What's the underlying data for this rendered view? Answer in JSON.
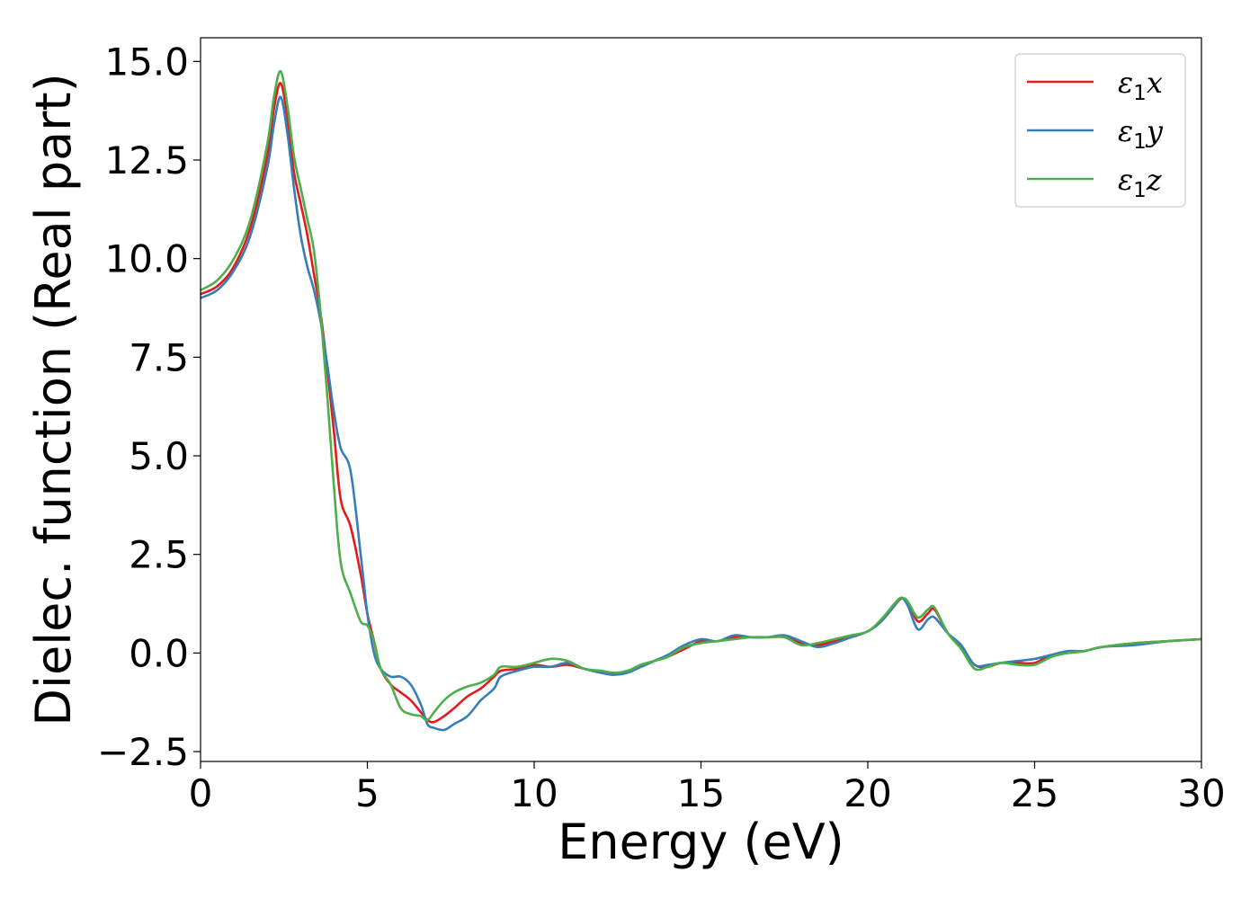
{
  "chart_data": {
    "type": "line",
    "title": "",
    "xlabel": "Energy (eV)",
    "ylabel": "Dielec. function (Real part)",
    "xlim": [
      0,
      30
    ],
    "ylim": [
      -2.75,
      15.6
    ],
    "xticks": [
      0,
      5,
      10,
      15,
      20,
      25,
      30
    ],
    "xtick_labels": [
      "0",
      "5",
      "10",
      "15",
      "20",
      "25",
      "30"
    ],
    "yticks": [
      -2.5,
      0.0,
      2.5,
      5.0,
      7.5,
      10.0,
      12.5,
      15.0
    ],
    "ytick_labels": [
      "−2.5",
      "0.0",
      "2.5",
      "5.0",
      "7.5",
      "10.0",
      "12.5",
      "15.0"
    ],
    "grid": false,
    "legend_position": "top-right",
    "series": [
      {
        "name": "ε₁x",
        "legend_main": "ε",
        "legend_sub": "1",
        "legend_suffix": "x",
        "color": "#e41a1c",
        "x": [
          0,
          0.5,
          1.0,
          1.5,
          2.0,
          2.2,
          2.4,
          2.6,
          2.8,
          3.0,
          3.2,
          3.4,
          3.6,
          3.8,
          4.0,
          4.2,
          4.5,
          4.8,
          5.0,
          5.2,
          5.4,
          5.7,
          6.0,
          6.3,
          6.6,
          6.8,
          7.0,
          7.3,
          7.6,
          8.0,
          8.4,
          8.8,
          9.0,
          9.5,
          10.0,
          10.5,
          11.0,
          11.5,
          12.0,
          12.4,
          12.8,
          13.2,
          13.6,
          14.0,
          14.5,
          15.0,
          15.5,
          16.0,
          16.5,
          17.0,
          17.5,
          18.0,
          18.5,
          19.0,
          19.5,
          20.0,
          20.4,
          20.8,
          21.0,
          21.2,
          21.5,
          21.8,
          22.0,
          22.4,
          22.8,
          23.2,
          23.6,
          24.0,
          24.5,
          25.0,
          25.5,
          26.0,
          26.5,
          27.0,
          28.0,
          29.0,
          30.0
        ],
        "y": [
          9.1,
          9.3,
          9.8,
          10.8,
          12.6,
          13.8,
          14.45,
          13.6,
          12.2,
          11.4,
          10.6,
          9.6,
          8.6,
          7.2,
          5.6,
          3.9,
          3.2,
          2.0,
          1.0,
          0.3,
          -0.4,
          -0.8,
          -1.0,
          -1.2,
          -1.5,
          -1.7,
          -1.75,
          -1.6,
          -1.4,
          -1.1,
          -0.9,
          -0.6,
          -0.45,
          -0.4,
          -0.3,
          -0.35,
          -0.3,
          -0.4,
          -0.5,
          -0.55,
          -0.45,
          -0.35,
          -0.2,
          -0.1,
          0.1,
          0.3,
          0.3,
          0.4,
          0.4,
          0.4,
          0.4,
          0.25,
          0.2,
          0.3,
          0.4,
          0.55,
          0.8,
          1.2,
          1.38,
          1.3,
          0.8,
          1.0,
          1.1,
          0.5,
          0.15,
          -0.3,
          -0.35,
          -0.25,
          -0.25,
          -0.25,
          -0.05,
          0.0,
          0.05,
          0.15,
          0.25,
          0.3,
          0.35
        ]
      },
      {
        "name": "ε₁y",
        "legend_main": "ε",
        "legend_sub": "1",
        "legend_suffix": "y",
        "color": "#377eb8",
        "x": [
          0,
          0.5,
          1.0,
          1.5,
          2.0,
          2.2,
          2.4,
          2.6,
          2.8,
          3.0,
          3.2,
          3.4,
          3.6,
          3.8,
          4.0,
          4.2,
          4.5,
          4.8,
          5.0,
          5.2,
          5.4,
          5.7,
          6.0,
          6.3,
          6.6,
          6.8,
          7.0,
          7.3,
          7.6,
          8.0,
          8.4,
          8.8,
          9.0,
          9.5,
          10.0,
          10.5,
          11.0,
          11.5,
          12.0,
          12.4,
          12.8,
          13.2,
          13.6,
          14.0,
          14.5,
          15.0,
          15.5,
          16.0,
          16.5,
          17.0,
          17.5,
          18.0,
          18.5,
          19.0,
          19.5,
          20.0,
          20.4,
          20.8,
          21.0,
          21.2,
          21.5,
          21.8,
          22.0,
          22.4,
          22.8,
          23.2,
          23.6,
          24.0,
          24.5,
          25.0,
          25.5,
          26.0,
          26.5,
          27.0,
          28.0,
          29.0,
          30.0
        ],
        "y": [
          9.0,
          9.2,
          9.7,
          10.6,
          12.3,
          13.4,
          14.1,
          13.2,
          11.8,
          10.6,
          9.8,
          9.2,
          8.4,
          7.3,
          6.1,
          5.2,
          4.6,
          2.5,
          1.0,
          0.0,
          -0.4,
          -0.6,
          -0.6,
          -0.8,
          -1.3,
          -1.8,
          -1.9,
          -1.95,
          -1.8,
          -1.6,
          -1.2,
          -0.9,
          -0.6,
          -0.45,
          -0.35,
          -0.35,
          -0.25,
          -0.4,
          -0.5,
          -0.55,
          -0.5,
          -0.35,
          -0.2,
          -0.05,
          0.2,
          0.35,
          0.3,
          0.45,
          0.4,
          0.4,
          0.45,
          0.3,
          0.15,
          0.25,
          0.4,
          0.55,
          0.8,
          1.2,
          1.4,
          1.2,
          0.6,
          0.85,
          0.9,
          0.5,
          0.2,
          -0.3,
          -0.3,
          -0.25,
          -0.2,
          -0.15,
          -0.05,
          0.05,
          0.05,
          0.15,
          0.2,
          0.3,
          0.35
        ]
      },
      {
        "name": "ε₁z",
        "legend_main": "ε",
        "legend_sub": "1",
        "legend_suffix": "z",
        "color": "#4daf4a",
        "x": [
          0,
          0.5,
          1.0,
          1.5,
          2.0,
          2.2,
          2.4,
          2.6,
          2.8,
          3.0,
          3.2,
          3.4,
          3.6,
          3.8,
          4.0,
          4.2,
          4.5,
          4.8,
          5.0,
          5.2,
          5.4,
          5.7,
          6.0,
          6.3,
          6.6,
          6.8,
          7.0,
          7.3,
          7.6,
          8.0,
          8.4,
          8.8,
          9.0,
          9.5,
          10.0,
          10.5,
          11.0,
          11.5,
          12.0,
          12.4,
          12.8,
          13.2,
          13.6,
          14.0,
          14.5,
          15.0,
          15.5,
          16.0,
          16.5,
          17.0,
          17.5,
          18.0,
          18.5,
          19.0,
          19.5,
          20.0,
          20.4,
          20.8,
          21.0,
          21.2,
          21.5,
          21.8,
          22.0,
          22.4,
          22.8,
          23.2,
          23.6,
          24.0,
          24.5,
          25.0,
          25.5,
          26.0,
          26.5,
          27.0,
          28.0,
          29.0,
          30.0
        ],
        "y": [
          9.2,
          9.45,
          10.0,
          11.0,
          12.9,
          14.1,
          14.75,
          13.9,
          12.6,
          11.8,
          11.0,
          10.2,
          8.6,
          6.5,
          4.2,
          2.3,
          1.5,
          0.8,
          0.7,
          0.3,
          -0.4,
          -0.8,
          -1.4,
          -1.55,
          -1.6,
          -1.7,
          -1.5,
          -1.2,
          -1.0,
          -0.85,
          -0.75,
          -0.55,
          -0.35,
          -0.35,
          -0.25,
          -0.15,
          -0.2,
          -0.4,
          -0.45,
          -0.5,
          -0.45,
          -0.3,
          -0.2,
          -0.1,
          0.15,
          0.25,
          0.3,
          0.35,
          0.4,
          0.4,
          0.4,
          0.2,
          0.25,
          0.35,
          0.45,
          0.55,
          0.85,
          1.25,
          1.4,
          1.3,
          0.9,
          1.1,
          1.15,
          0.5,
          0.1,
          -0.4,
          -0.35,
          -0.25,
          -0.3,
          -0.3,
          -0.1,
          0.0,
          0.05,
          0.15,
          0.25,
          0.3,
          0.35
        ]
      }
    ]
  }
}
